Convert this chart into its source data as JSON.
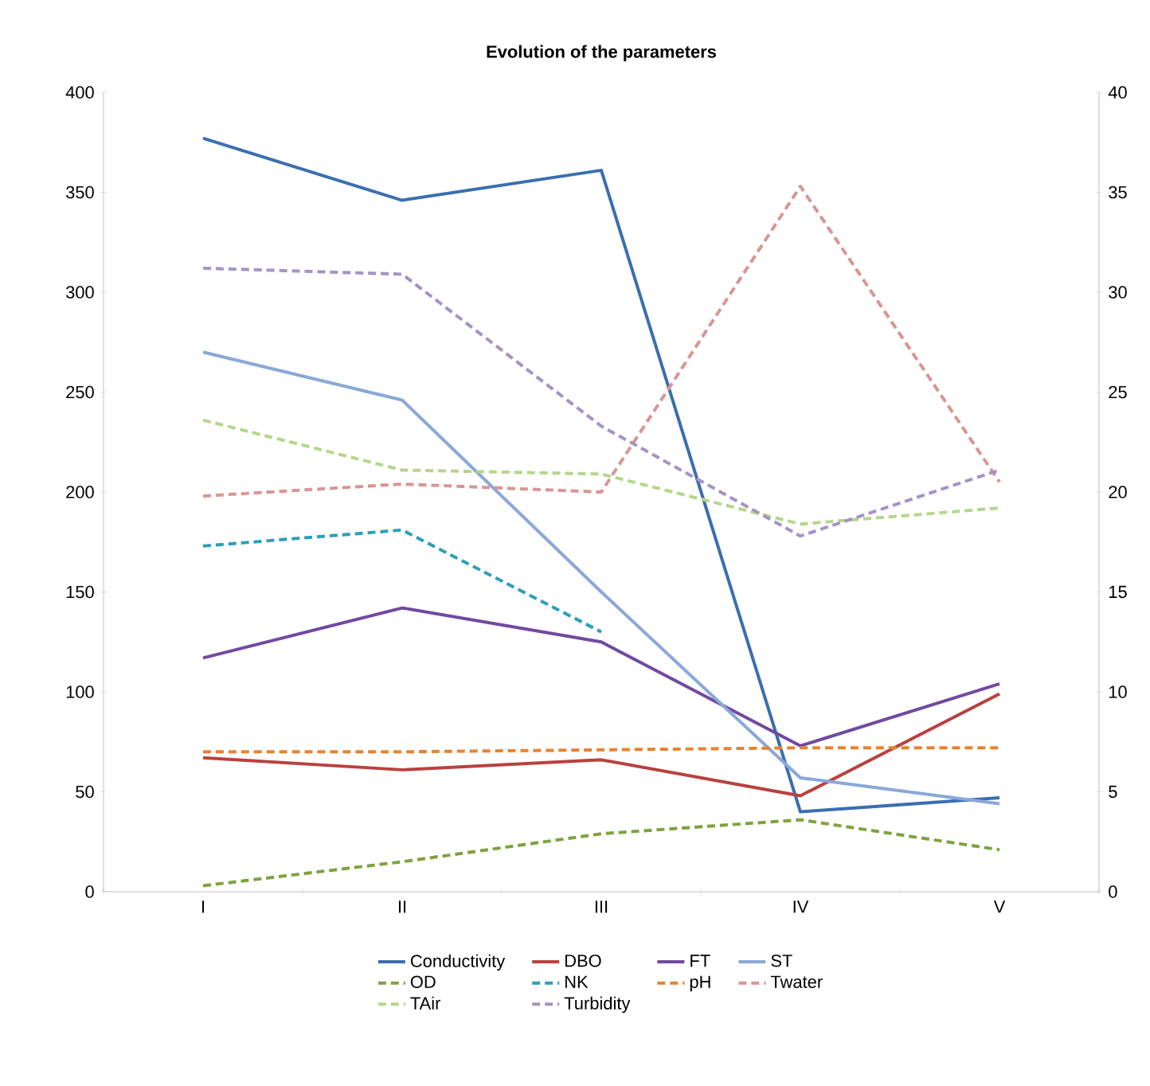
{
  "chart_data": {
    "type": "line",
    "title": "Evolution of the parameters",
    "categories": [
      "I",
      "II",
      "III",
      "IV",
      "V"
    ],
    "ylim": [
      0,
      400
    ],
    "yticks": [
      0,
      50,
      100,
      150,
      200,
      250,
      300,
      350,
      400
    ],
    "y2lim": [
      0,
      40
    ],
    "y2ticks": [
      0,
      5,
      10,
      15,
      20,
      25,
      30,
      35,
      40
    ],
    "grid": false,
    "legend": "bottom",
    "marker": "none",
    "series": [
      {
        "name": "Conductivity",
        "color": "#3a6eb0",
        "line_style": "solid",
        "values": [
          377,
          346,
          361,
          40,
          47
        ]
      },
      {
        "name": "DBO",
        "color": "#b9413f",
        "line_style": "solid",
        "values": [
          67,
          61,
          66,
          48,
          99
        ]
      },
      {
        "name": "FT",
        "color": "#7149a0",
        "line_style": "solid",
        "values": [
          117,
          142,
          125,
          73,
          104
        ]
      },
      {
        "name": "ST",
        "color": "#8aa8d8",
        "line_style": "solid",
        "values": [
          270,
          246,
          150,
          57,
          44
        ]
      },
      {
        "name": "OD",
        "color": "#7fa23c",
        "line_style": "dashed",
        "axis": "y2",
        "values": [
          0.3,
          1.5,
          2.9,
          3.6,
          2.1
        ]
      },
      {
        "name": "NK",
        "color": "#2c9fb9",
        "line_style": "dashed",
        "axis": "y2",
        "values": [
          17.3,
          18.1,
          13.0,
          null,
          null
        ]
      },
      {
        "name": "pH",
        "color": "#e8822e",
        "line_style": "dashed",
        "axis": "y2",
        "values": [
          7.0,
          7.0,
          7.1,
          7.2,
          7.2
        ]
      },
      {
        "name": "Twater",
        "color": "#d99594",
        "line_style": "dashed",
        "axis": "y2",
        "values": [
          19.8,
          20.4,
          20.0,
          35.3,
          20.5
        ]
      },
      {
        "name": "TAir",
        "color": "#b4d68a",
        "line_style": "dashed",
        "axis": "y2",
        "values": [
          23.6,
          21.1,
          20.9,
          18.4,
          19.2
        ]
      },
      {
        "name": "Turbidity",
        "color": "#a493c4",
        "line_style": "dashed",
        "axis": "y2",
        "values": [
          31.2,
          30.9,
          23.3,
          17.8,
          21.1
        ]
      }
    ]
  }
}
